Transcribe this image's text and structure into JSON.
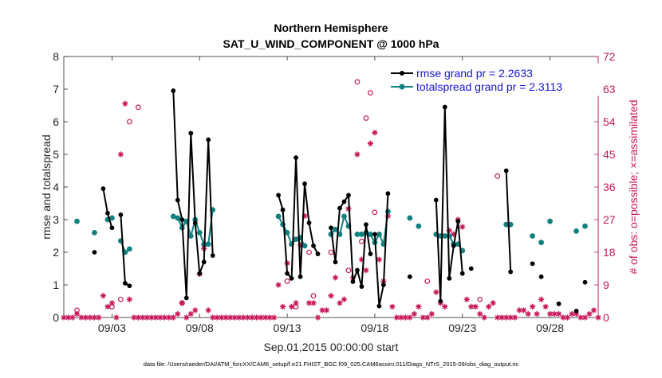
{
  "chart_data": {
    "type": "line",
    "title": "Northern Hemisphere",
    "subtitle": "SAT_U_WIND_COMPONENT @ 1000 hPa",
    "xlabel": "Sep.01,2015 00:00:00 start",
    "ylabel_left": "rmse and totalspread",
    "ylabel_right": "# of obs: o=possible; ×=assimilated",
    "footnote": "data file: /Users/raeder/DAI/ATM_forcXX/CAM6_setup/f.e21.FHIST_BGC.f09_025.CAM6assim.011/Diags_NTrS_2015-09/obs_diag_output.nc",
    "xlim": [
      0.25,
      30.75
    ],
    "ylim_left": [
      0,
      8
    ],
    "ylim_right": [
      0,
      72
    ],
    "x_ticks": [
      {
        "x": 3,
        "label": "09/03"
      },
      {
        "x": 8,
        "label": "09/08"
      },
      {
        "x": 13,
        "label": "09/13"
      },
      {
        "x": 18,
        "label": "09/18"
      },
      {
        "x": 23,
        "label": "09/23"
      },
      {
        "x": 28,
        "label": "09/28"
      }
    ],
    "y_ticks_left": [
      "0",
      "1",
      "2",
      "3",
      "4",
      "5",
      "6",
      "7",
      "8"
    ],
    "y_ticks_right": [
      "0",
      "9",
      "18",
      "27",
      "36",
      "45",
      "54",
      "63",
      "72"
    ],
    "colors": {
      "rmse": "#000000",
      "spread": "#108080",
      "obs": "#c8185a",
      "legend_text": "#1515d0",
      "axis": "#262626"
    },
    "legend": [
      {
        "name": "rmse",
        "label": "rmse grand pr = 2.2633"
      },
      {
        "name": "spread",
        "label": "totalspread grand pr = 2.3113"
      }
    ],
    "rmse_segments": [
      [
        [
          2.0,
          2.0
        ]
      ],
      [
        [
          2.5,
          3.95
        ],
        [
          2.75,
          3.2
        ],
        [
          3.0,
          2.75
        ]
      ],
      [
        [
          3.5,
          3.15
        ],
        [
          3.75,
          1.05
        ],
        [
          4.0,
          0.97
        ]
      ],
      [
        [
          6.5,
          6.95
        ],
        [
          6.75,
          3.6
        ],
        [
          7.0,
          3.0
        ],
        [
          7.25,
          0.6
        ],
        [
          7.5,
          5.65
        ],
        [
          7.75,
          2.9
        ],
        [
          8.0,
          1.35
        ],
        [
          8.25,
          1.7
        ],
        [
          8.5,
          5.45
        ],
        [
          8.75,
          1.9
        ]
      ],
      [
        [
          12.5,
          3.75
        ],
        [
          12.75,
          3.3
        ],
        [
          13.0,
          1.35
        ],
        [
          13.25,
          1.2
        ],
        [
          13.5,
          4.9
        ],
        [
          13.75,
          1.25
        ],
        [
          14.0,
          4.1
        ],
        [
          14.25,
          2.9
        ],
        [
          14.5,
          2.2
        ],
        [
          14.75,
          1.95
        ]
      ],
      [
        [
          15.5,
          2.75
        ],
        [
          15.75,
          1.7
        ],
        [
          16.0,
          3.35
        ],
        [
          16.25,
          3.55
        ],
        [
          16.5,
          3.75
        ],
        [
          16.75,
          1.1
        ],
        [
          17.0,
          1.45
        ],
        [
          17.25,
          0.95
        ],
        [
          17.5,
          2.85
        ],
        [
          17.75,
          1.95
        ]
      ],
      [
        [
          18.0,
          2.55
        ],
        [
          18.25,
          0.35
        ],
        [
          18.5,
          1.0
        ],
        [
          18.75,
          3.8
        ]
      ],
      [
        [
          20.0,
          1.25
        ]
      ],
      [
        [
          21.5,
          3.6
        ],
        [
          21.75,
          0.5
        ],
        [
          22.0,
          6.45
        ],
        [
          22.25,
          1.2
        ],
        [
          22.5,
          2.2
        ],
        [
          22.75,
          2.95
        ],
        [
          23.0,
          1.35
        ]
      ],
      [
        [
          23.5,
          1.5
        ]
      ],
      [
        [
          25.5,
          4.5
        ],
        [
          25.75,
          1.4
        ]
      ],
      [
        [
          27.0,
          1.65
        ]
      ],
      [
        [
          27.5,
          1.25
        ]
      ],
      [
        [
          28.5,
          0.42
        ]
      ],
      [
        [
          29.5,
          0.2
        ]
      ],
      [
        [
          30.0,
          1.08
        ]
      ]
    ],
    "spread_segments": [
      [
        [
          1.0,
          2.95
        ]
      ],
      [
        [
          2.0,
          2.6
        ]
      ],
      [
        [
          2.75,
          3.0
        ],
        [
          3.0,
          3.05
        ]
      ],
      [
        [
          3.5,
          2.35
        ],
        [
          3.75,
          2.0
        ],
        [
          4.0,
          2.1
        ]
      ],
      [
        [
          6.5,
          3.1
        ],
        [
          6.75,
          3.05
        ],
        [
          7.0,
          2.75
        ],
        [
          7.25,
          2.95
        ],
        [
          7.5,
          2.5
        ],
        [
          7.75,
          3.0
        ],
        [
          8.0,
          2.6
        ],
        [
          8.25,
          2.25
        ],
        [
          8.5,
          2.25
        ],
        [
          8.75,
          3.3
        ]
      ],
      [
        [
          12.5,
          3.1
        ],
        [
          12.75,
          2.85
        ],
        [
          13.0,
          2.6
        ],
        [
          13.25,
          2.25
        ],
        [
          13.5,
          2.4
        ],
        [
          13.75,
          2.45
        ],
        [
          14.0,
          2.2
        ]
      ],
      [
        [
          15.5,
          2.55
        ],
        [
          15.75,
          2.7
        ],
        [
          16.0,
          2.55
        ],
        [
          16.25,
          3.1
        ],
        [
          16.5,
          2.8
        ]
      ],
      [
        [
          17.0,
          2.55
        ],
        [
          17.25,
          2.55
        ],
        [
          17.5,
          2.6
        ],
        [
          17.75,
          2.55
        ],
        [
          18.0,
          2.3
        ],
        [
          18.25,
          2.55
        ],
        [
          18.5,
          2.25
        ],
        [
          18.75,
          3.25
        ]
      ],
      [
        [
          20.0,
          3.05
        ]
      ],
      [
        [
          20.5,
          2.8
        ]
      ],
      [
        [
          21.5,
          2.55
        ],
        [
          21.75,
          2.5
        ],
        [
          22.0,
          2.5
        ],
        [
          22.25,
          2.5
        ],
        [
          22.5,
          2.25
        ],
        [
          22.75,
          2.25
        ]
      ],
      [
        [
          23.0,
          2.05
        ]
      ],
      [
        [
          25.5,
          2.85
        ],
        [
          25.75,
          2.85
        ]
      ],
      [
        [
          27.0,
          2.5
        ]
      ],
      [
        [
          27.5,
          2.3
        ]
      ],
      [
        [
          28.0,
          2.95
        ]
      ],
      [
        [
          29.5,
          2.65
        ]
      ],
      [
        [
          30.0,
          2.8
        ]
      ]
    ],
    "obs_possible": [
      [
        1.0,
        2
      ],
      [
        3.0,
        3
      ],
      [
        3.5,
        5
      ],
      [
        4.0,
        54
      ],
      [
        4.5,
        58
      ],
      [
        7.0,
        4
      ],
      [
        8.25,
        20
      ],
      [
        13.0,
        10
      ],
      [
        13.5,
        3
      ],
      [
        14.25,
        18
      ],
      [
        14.5,
        6
      ],
      [
        15.5,
        18
      ],
      [
        16.5,
        13
      ],
      [
        17.0,
        65
      ],
      [
        17.25,
        21
      ],
      [
        17.5,
        55
      ],
      [
        17.75,
        62
      ],
      [
        18.0,
        29
      ],
      [
        21.0,
        10
      ],
      [
        24.0,
        5
      ],
      [
        25.0,
        39
      ]
    ],
    "obs_assimilated": [
      [
        0.25,
        0
      ],
      [
        0.5,
        0
      ],
      [
        0.75,
        0
      ],
      [
        1.0,
        1
      ],
      [
        1.25,
        0
      ],
      [
        1.5,
        0
      ],
      [
        1.75,
        0
      ],
      [
        2.0,
        0
      ],
      [
        2.25,
        0
      ],
      [
        2.5,
        6
      ],
      [
        2.75,
        3
      ],
      [
        3.0,
        4
      ],
      [
        3.25,
        0
      ],
      [
        3.5,
        45
      ],
      [
        3.75,
        59
      ],
      [
        4.0,
        5
      ],
      [
        4.25,
        0
      ],
      [
        4.5,
        0
      ],
      [
        4.75,
        0
      ],
      [
        5.0,
        0
      ],
      [
        5.25,
        0
      ],
      [
        5.5,
        0
      ],
      [
        5.75,
        0
      ],
      [
        6.0,
        0
      ],
      [
        6.25,
        0
      ],
      [
        6.5,
        0
      ],
      [
        6.75,
        1
      ],
      [
        7.0,
        4
      ],
      [
        7.25,
        0
      ],
      [
        7.5,
        1
      ],
      [
        7.75,
        2
      ],
      [
        8.0,
        12
      ],
      [
        8.25,
        19
      ],
      [
        8.5,
        2
      ],
      [
        8.75,
        0
      ],
      [
        9.0,
        0
      ],
      [
        9.25,
        0
      ],
      [
        9.5,
        0
      ],
      [
        9.75,
        0
      ],
      [
        10.0,
        0
      ],
      [
        10.25,
        0
      ],
      [
        10.5,
        0
      ],
      [
        10.75,
        0
      ],
      [
        11.0,
        0
      ],
      [
        11.25,
        0
      ],
      [
        11.5,
        0
      ],
      [
        11.75,
        0
      ],
      [
        12.0,
        0
      ],
      [
        12.25,
        0
      ],
      [
        12.5,
        9
      ],
      [
        12.75,
        3
      ],
      [
        13.0,
        15
      ],
      [
        13.25,
        3
      ],
      [
        13.5,
        4
      ],
      [
        13.75,
        20
      ],
      [
        14.0,
        28
      ],
      [
        14.25,
        4
      ],
      [
        14.5,
        4
      ],
      [
        14.75,
        0
      ],
      [
        15.0,
        2
      ],
      [
        15.25,
        2
      ],
      [
        15.5,
        6
      ],
      [
        15.75,
        11
      ],
      [
        16.0,
        4
      ],
      [
        16.25,
        5
      ],
      [
        16.5,
        30
      ],
      [
        16.75,
        11
      ],
      [
        17.0,
        45
      ],
      [
        17.25,
        16
      ],
      [
        17.5,
        13
      ],
      [
        17.75,
        48
      ],
      [
        18.0,
        51
      ],
      [
        18.25,
        16
      ],
      [
        18.5,
        10
      ],
      [
        18.75,
        28
      ],
      [
        19.0,
        3
      ],
      [
        19.25,
        0
      ],
      [
        19.5,
        0
      ],
      [
        19.75,
        0
      ],
      [
        20.0,
        0
      ],
      [
        20.25,
        1
      ],
      [
        20.5,
        3
      ],
      [
        20.75,
        0
      ],
      [
        21.0,
        0
      ],
      [
        21.25,
        1
      ],
      [
        21.5,
        7
      ],
      [
        21.75,
        4
      ],
      [
        22.0,
        3
      ],
      [
        22.25,
        24
      ],
      [
        22.5,
        23
      ],
      [
        22.75,
        27
      ],
      [
        23.0,
        25
      ],
      [
        23.25,
        5
      ],
      [
        23.5,
        3
      ],
      [
        23.75,
        3
      ],
      [
        24.0,
        1
      ],
      [
        24.25,
        0
      ],
      [
        24.5,
        3
      ],
      [
        24.75,
        4
      ],
      [
        25.0,
        0
      ],
      [
        25.25,
        0
      ],
      [
        25.5,
        0
      ],
      [
        25.75,
        0
      ],
      [
        26.0,
        0
      ],
      [
        26.25,
        2
      ],
      [
        26.5,
        2
      ],
      [
        26.75,
        1
      ],
      [
        27.0,
        3
      ],
      [
        27.25,
        1
      ],
      [
        27.5,
        5
      ],
      [
        27.75,
        3
      ],
      [
        28.0,
        1
      ],
      [
        28.25,
        1
      ],
      [
        28.5,
        1
      ],
      [
        28.75,
        0
      ],
      [
        29.0,
        0
      ],
      [
        29.25,
        1
      ],
      [
        29.5,
        1
      ],
      [
        29.75,
        0
      ],
      [
        30.0,
        0
      ],
      [
        30.25,
        1
      ],
      [
        30.5,
        2
      ],
      [
        30.75,
        0
      ]
    ]
  }
}
